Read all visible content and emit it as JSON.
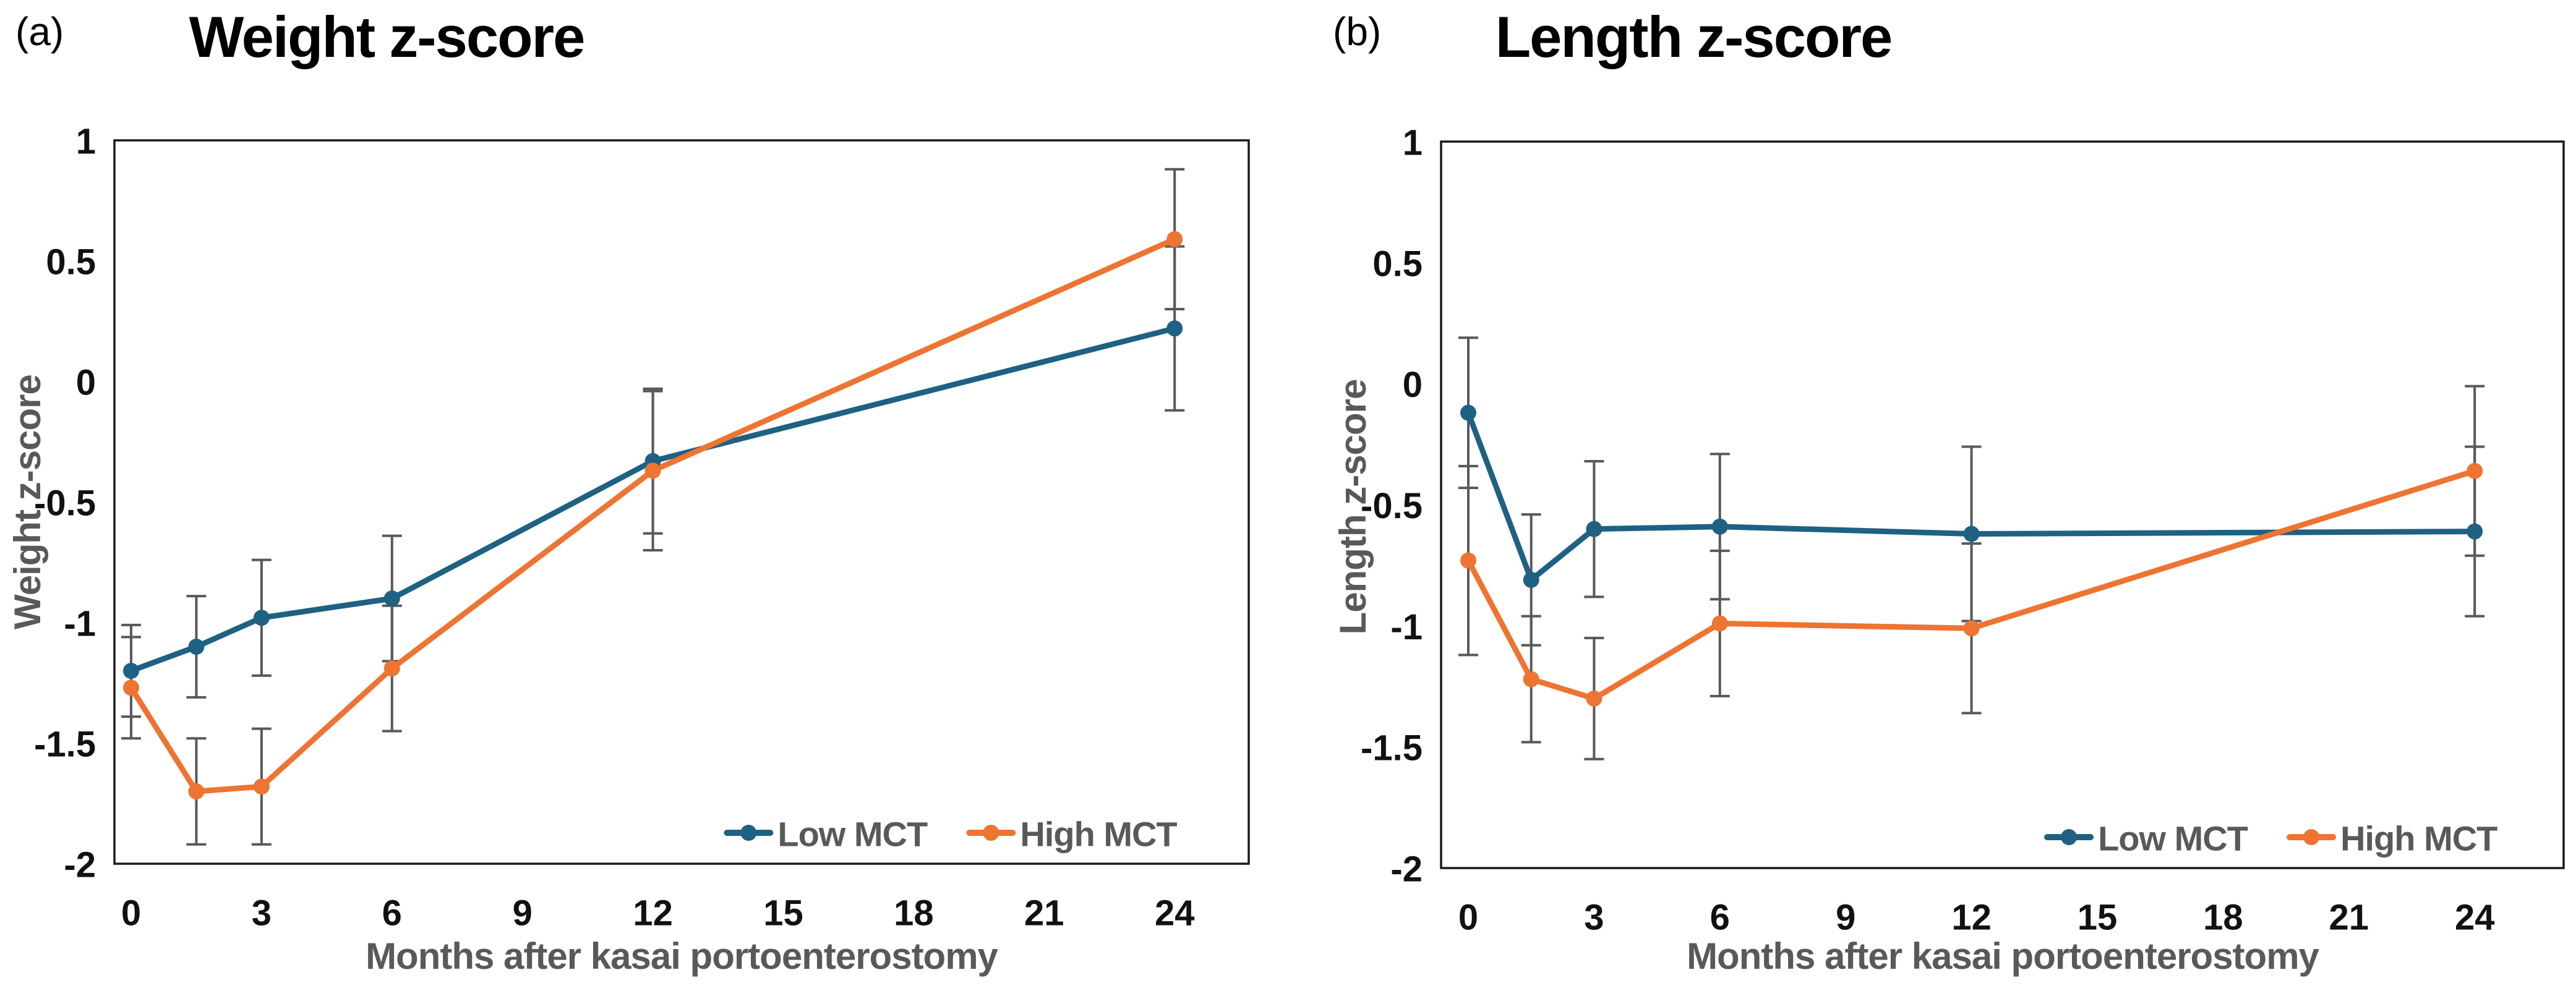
{
  "figure": {
    "panel_labels": [
      "(a)",
      "(b)"
    ],
    "legend": {
      "items": [
        {
          "label": "Low MCT",
          "color": "#1E6183"
        },
        {
          "label": "High MCT",
          "color": "#ED7431"
        }
      ]
    },
    "colors": {
      "low_mct": "#1E6183",
      "high_mct": "#ED7431",
      "error_bar": "#595959",
      "axis_line": "#1a1a1a",
      "tick_text": "#111111",
      "axis_title_text": "#595959"
    }
  },
  "chart_data": [
    {
      "type": "line",
      "panel": "a",
      "title": "Weight z-score",
      "xlabel": "Months after kasai portoenterostomy",
      "ylabel": "Weight z-score",
      "x": [
        0,
        1.5,
        3,
        6,
        12,
        24
      ],
      "x_ticks": [
        "0",
        "3",
        "6",
        "9",
        "12",
        "15",
        "18",
        "21",
        "24"
      ],
      "y_ticks": [
        "1",
        "0.5",
        "0",
        "-0.5",
        "-1",
        "-1.5",
        "-2"
      ],
      "xlim": [
        -0.4,
        25.8
      ],
      "ylim": [
        -2,
        1
      ],
      "grid": false,
      "legend_position": "inside-bottom-right",
      "error_bars": true,
      "series": [
        {
          "name": "Low MCT",
          "color": "#1E6183",
          "values": [
            -1.2,
            -1.1,
            -0.98,
            -0.9,
            -0.33,
            0.22
          ],
          "errors": [
            0.19,
            0.21,
            0.24,
            0.26,
            0.3,
            0.34
          ]
        },
        {
          "name": "High MCT",
          "color": "#ED7431",
          "values": [
            -1.27,
            -1.7,
            -1.68,
            -1.19,
            -0.37,
            0.59
          ],
          "errors": [
            0.21,
            0.22,
            0.24,
            0.26,
            0.33,
            0.29
          ]
        }
      ]
    },
    {
      "type": "line",
      "panel": "b",
      "title": "Length z-score",
      "xlabel": "Months after kasai portoenterostomy",
      "ylabel": "Length z-score",
      "x": [
        0,
        1.5,
        3,
        6,
        12,
        24
      ],
      "x_ticks": [
        "0",
        "3",
        "6",
        "9",
        "12",
        "15",
        "18",
        "21",
        "24"
      ],
      "y_ticks": [
        "1",
        "0.5",
        "0",
        "-0.5",
        "-1",
        "-1.5",
        "-2"
      ],
      "xlim": [
        -0.65,
        26.1
      ],
      "ylim": [
        -2,
        1
      ],
      "grid": false,
      "legend_position": "inside-bottom-right",
      "error_bars": true,
      "series": [
        {
          "name": "Low MCT",
          "color": "#1E6183",
          "values": [
            -0.12,
            -0.81,
            -0.6,
            -0.59,
            -0.62,
            -0.61
          ],
          "errors": [
            0.31,
            0.27,
            0.28,
            0.3,
            0.36,
            0.35
          ]
        },
        {
          "name": "High MCT",
          "color": "#ED7431",
          "values": [
            -0.73,
            -1.22,
            -1.3,
            -0.99,
            -1.01,
            -0.36
          ],
          "errors": [
            0.39,
            0.26,
            0.25,
            0.3,
            0.35,
            0.35
          ]
        }
      ]
    }
  ]
}
